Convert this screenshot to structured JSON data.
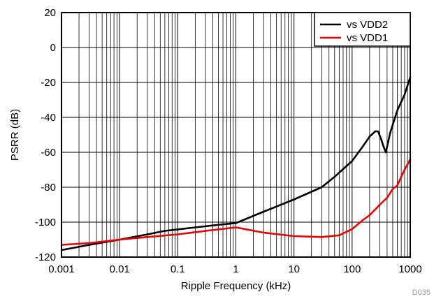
{
  "chart_data": {
    "type": "line",
    "xlabel": "Ripple Frequency (kHz)",
    "ylabel": "PSRR (dB)",
    "x_scale": "log",
    "xlim": [
      0.001,
      1000
    ],
    "ylim": [
      -120,
      20
    ],
    "x_ticks": [
      "0.001",
      "0.01",
      "0.1",
      "1",
      "10",
      "100",
      "1000"
    ],
    "y_ticks": [
      "20",
      "0",
      "-20",
      "-40",
      "-60",
      "-80",
      "-100",
      "-120"
    ],
    "grid": true,
    "legend_position": "top-right",
    "figure_id": "D035",
    "series": [
      {
        "name": "vs VDD2",
        "color": "#000000",
        "x": [
          0.001,
          0.003,
          0.01,
          0.03,
          0.06,
          0.2,
          0.5,
          1,
          3,
          10,
          30,
          50,
          100,
          150,
          200,
          250,
          280,
          320,
          350,
          380,
          450,
          600,
          800,
          1000
        ],
        "y": [
          -116,
          -113,
          -110,
          -107,
          -105,
          -103,
          -101.5,
          -100.5,
          -94,
          -87,
          -80,
          -74,
          -65,
          -57,
          -51,
          -48,
          -48,
          -53,
          -57,
          -60,
          -49,
          -36,
          -27,
          -17
        ]
      },
      {
        "name": "vs VDD1",
        "color": "#e00000",
        "x": [
          0.001,
          0.003,
          0.01,
          0.03,
          0.1,
          0.3,
          1,
          3,
          10,
          30,
          60,
          100,
          150,
          200,
          300,
          400,
          500,
          600,
          700,
          800,
          1000
        ],
        "y": [
          -113,
          -112,
          -110,
          -108.5,
          -107,
          -105,
          -103,
          -106,
          -108,
          -108.5,
          -107.5,
          -104,
          -99,
          -96,
          -90,
          -86,
          -81,
          -79,
          -74,
          -70,
          -64
        ]
      }
    ]
  }
}
